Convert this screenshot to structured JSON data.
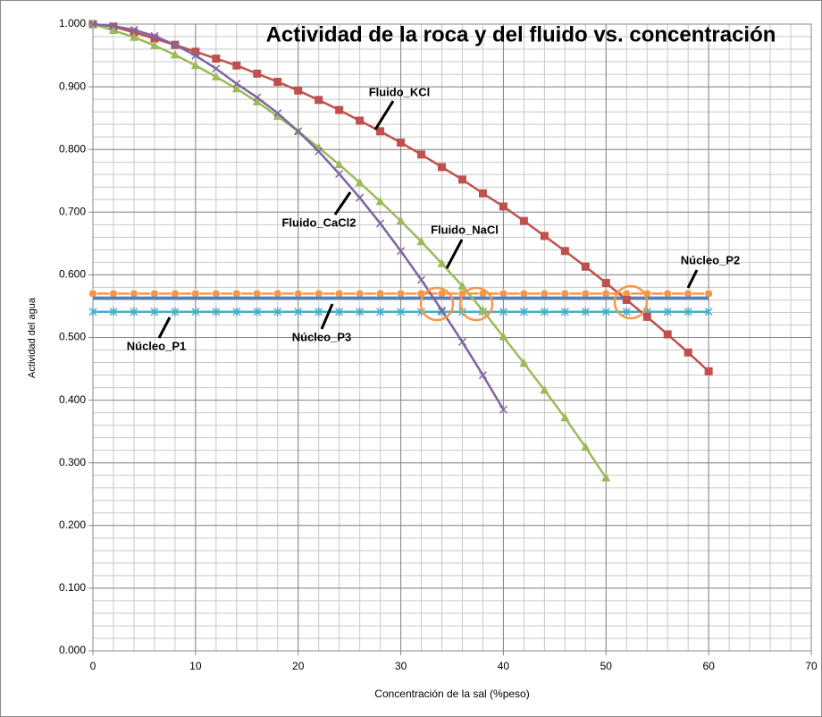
{
  "chart_data": {
    "type": "line",
    "title": "Actividad de la roca y del fluido vs. concentración",
    "xlabel": "Concentración de la sal (%peso)",
    "ylabel": "Actividad del agua",
    "xlim": [
      0,
      70
    ],
    "xticks": [
      0,
      10,
      20,
      30,
      40,
      50,
      60,
      70
    ],
    "ylim": [
      0,
      1
    ],
    "yticks": [
      {
        "value": 0,
        "label": "0.000"
      },
      {
        "value": 0.1,
        "label": "0.100"
      },
      {
        "value": 0.2,
        "label": "0.200"
      },
      {
        "value": 0.3,
        "label": "0.300"
      },
      {
        "value": 0.4,
        "label": "0.400"
      },
      {
        "value": 0.5,
        "label": "0.500"
      },
      {
        "value": 0.6,
        "label": "0.600"
      },
      {
        "value": 0.7,
        "label": "0.700"
      },
      {
        "value": 0.8,
        "label": "0.800"
      },
      {
        "value": 0.9,
        "label": "0.900"
      },
      {
        "value": 1,
        "label": "1.000"
      }
    ],
    "grid": true,
    "minor_grid": {
      "x": 2,
      "y": 0.02
    },
    "x": [
      0,
      2,
      4,
      6,
      8,
      10,
      12,
      14,
      16,
      18,
      20,
      22,
      24,
      26,
      28,
      30,
      32,
      34,
      36,
      38,
      40,
      42,
      44,
      46,
      48,
      50,
      52,
      54,
      56,
      58,
      60
    ],
    "series": [
      {
        "name": "Núcleo_P2",
        "color": "#f79646",
        "marker": "circle",
        "values": [
          0.57,
          0.57,
          0.57,
          0.57,
          0.57,
          0.57,
          0.57,
          0.57,
          0.57,
          0.57,
          0.57,
          0.57,
          0.57,
          0.57,
          0.57,
          0.57,
          0.57,
          0.57,
          0.57,
          0.57,
          0.57,
          0.57,
          0.57,
          0.57,
          0.57,
          0.57,
          0.57,
          0.57,
          0.57,
          0.57,
          0.57
        ]
      },
      {
        "name": "Núcleo_P1",
        "color": "#4bacc6",
        "marker": "asterisk",
        "values": [
          0.541,
          0.541,
          0.541,
          0.541,
          0.541,
          0.541,
          0.541,
          0.541,
          0.541,
          0.541,
          0.541,
          0.541,
          0.541,
          0.541,
          0.541,
          0.541,
          0.541,
          0.541,
          0.541,
          0.541,
          0.541,
          0.541,
          0.541,
          0.541,
          0.541,
          0.541,
          0.541,
          0.541,
          0.541,
          0.541,
          0.541
        ]
      },
      {
        "name": "Núcleo_P3",
        "color": "#4f81bd",
        "marker": "none",
        "values": [
          0.563,
          0.563,
          0.563,
          0.563,
          0.563,
          0.563,
          0.563,
          0.563,
          0.563,
          0.563,
          0.563,
          0.563,
          0.563,
          0.563,
          0.563,
          0.563,
          0.563,
          0.563,
          0.563,
          0.563,
          0.563,
          0.563,
          0.563,
          0.563,
          0.563,
          0.563,
          0.563,
          0.563,
          0.563,
          0.563,
          0.563
        ]
      },
      {
        "name": "Fluido_KCl",
        "color": "#c0504d",
        "marker": "square",
        "values": [
          1.0,
          0.996,
          0.987,
          0.977,
          0.967,
          0.956,
          0.945,
          0.934,
          0.921,
          0.908,
          0.894,
          0.879,
          0.863,
          0.846,
          0.829,
          0.811,
          0.792,
          0.772,
          0.752,
          0.73,
          0.709,
          0.686,
          0.662,
          0.638,
          0.613,
          0.587,
          0.56,
          0.533,
          0.505,
          0.476,
          0.446
        ]
      },
      {
        "name": "Fluido_NaCl",
        "color": "#9bbb59",
        "marker": "triangle",
        "values": [
          1.0,
          0.99,
          0.979,
          0.966,
          0.951,
          0.934,
          0.916,
          0.897,
          0.876,
          0.853,
          0.829,
          0.803,
          0.776,
          0.747,
          0.717,
          0.686,
          0.653,
          0.618,
          0.582,
          0.543,
          0.501,
          0.459,
          0.416,
          0.372,
          0.325,
          0.276,
          null,
          null,
          null,
          null,
          null
        ]
      },
      {
        "name": "Fluido_CaCl2",
        "color": "#8064a2",
        "marker": "x",
        "values": [
          1.0,
          0.997,
          0.991,
          0.981,
          0.967,
          0.95,
          0.929,
          0.905,
          0.883,
          0.858,
          0.829,
          0.797,
          0.761,
          0.723,
          0.682,
          0.638,
          0.592,
          0.543,
          0.493,
          0.44,
          0.385,
          null,
          null,
          null,
          null,
          null,
          null,
          null,
          null,
          null,
          null
        ]
      }
    ]
  }
}
